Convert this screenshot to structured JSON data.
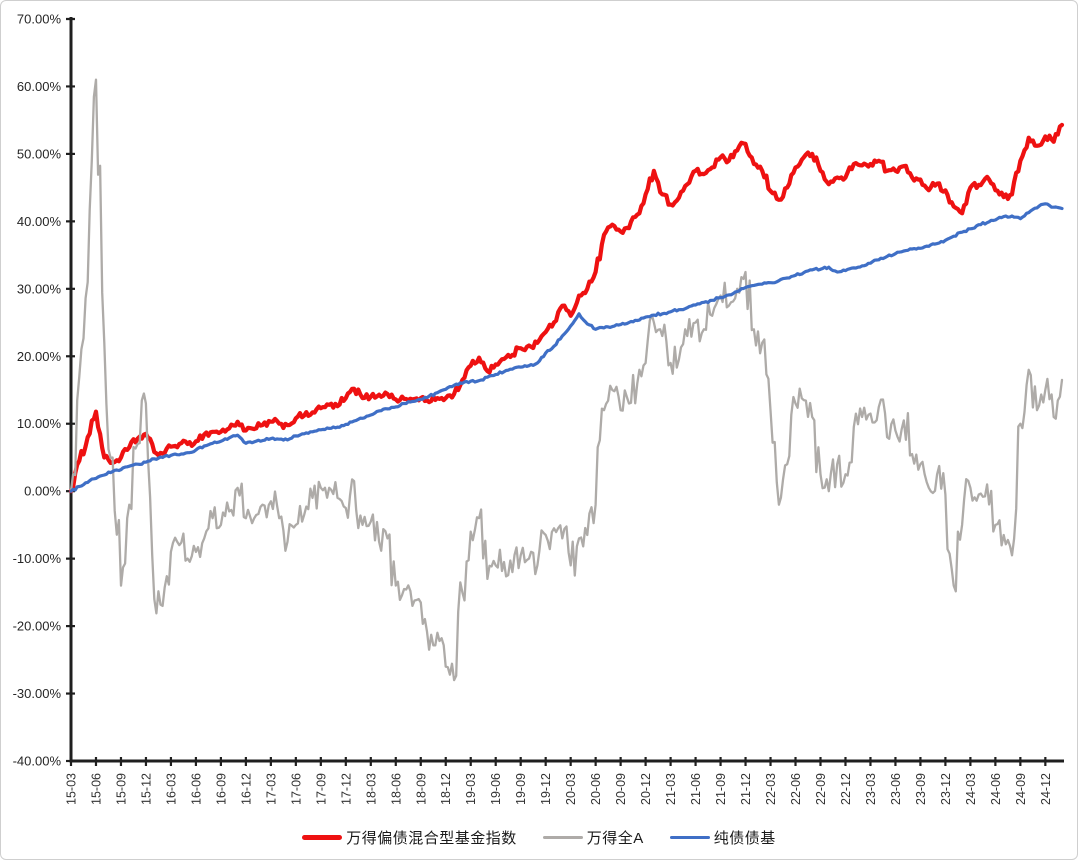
{
  "chart_data": {
    "type": "line",
    "title": "",
    "xlabel": "",
    "ylabel": "",
    "grid": false,
    "legend_position": "bottom",
    "ylim": [
      -40,
      70
    ],
    "ytick_step": 10,
    "y_tick_labels": [
      "70.00%",
      "60.00%",
      "50.00%",
      "40.00%",
      "30.00%",
      "20.00%",
      "10.00%",
      "0.00%",
      "-10.00%",
      "-20.00%",
      "-30.00%",
      "-40.00%"
    ],
    "x_tick_labels": [
      "15-03",
      "15-06",
      "15-09",
      "15-12",
      "16-03",
      "16-06",
      "16-09",
      "16-12",
      "17-03",
      "17-06",
      "17-09",
      "17-12",
      "18-03",
      "18-06",
      "18-09",
      "18-12",
      "19-03",
      "19-06",
      "19-09",
      "19-12",
      "20-03",
      "20-06",
      "20-09",
      "20-12",
      "21-03",
      "21-06",
      "21-09",
      "21-12",
      "22-03",
      "22-06",
      "22-09",
      "22-12",
      "23-03",
      "23-06",
      "23-09",
      "23-12",
      "24-03",
      "24-06",
      "24-09",
      "24-12"
    ],
    "x_months_per_tick": 3,
    "x_total_months": 120,
    "series": [
      {
        "name": "万得偏债混合型基金指数",
        "color": "#ee1111",
        "width": 4.2,
        "jitter": 0.55,
        "values": [
          0.0,
          4.5,
          8.0,
          11.8,
          5.0,
          4.2,
          5.0,
          6.5,
          7.8,
          8.5,
          5.8,
          5.6,
          6.6,
          7.0,
          7.0,
          7.4,
          8.4,
          8.8,
          8.8,
          9.3,
          10.3,
          9.0,
          9.2,
          9.8,
          10.3,
          10.0,
          9.8,
          10.8,
          11.2,
          11.7,
          12.3,
          12.8,
          12.6,
          13.8,
          15.2,
          13.8,
          14.0,
          14.3,
          14.4,
          13.6,
          13.7,
          13.6,
          13.8,
          13.2,
          13.8,
          13.8,
          14.4,
          16.5,
          18.6,
          19.8,
          17.8,
          18.8,
          19.6,
          20.2,
          21.2,
          21.6,
          22.0,
          23.6,
          25.0,
          27.5,
          26.0,
          29.0,
          30.0,
          32.5,
          38.0,
          39.5,
          38.5,
          39.0,
          41.0,
          44.0,
          47.5,
          44.0,
          42.5,
          43.5,
          45.5,
          47.5,
          47.0,
          48.0,
          49.5,
          49.0,
          50.5,
          51.5,
          48.5,
          47.5,
          44.5,
          43.2,
          45.0,
          48.0,
          49.5,
          50.0,
          47.5,
          45.5,
          46.5,
          46.5,
          48.5,
          48.3,
          48.5,
          49.0,
          47.5,
          47.5,
          48.2,
          46.5,
          46.2,
          44.6,
          45.6,
          44.6,
          42.2,
          41.2,
          45.0,
          45.4,
          46.6,
          44.6,
          43.6,
          44.0,
          49.0,
          52.4,
          51.2,
          52.6,
          51.8,
          54.3
        ]
      },
      {
        "name": "万得全A",
        "color": "#aeaba8",
        "width": 2.3,
        "jitter": 2.3,
        "values": [
          0,
          17,
          31,
          61,
          22,
          5,
          -14,
          -2,
          7,
          13,
          -16,
          -17,
          -9,
          -8,
          -10,
          -9,
          -7,
          -4,
          -5,
          -3,
          0.5,
          -4,
          -4,
          -2,
          -1.5,
          -4,
          -7.5,
          -5,
          -3.5,
          -1,
          0.5,
          0.5,
          -1,
          -2.5,
          1.5,
          -5,
          -4.5,
          -7.5,
          -7,
          -14,
          -14.5,
          -17,
          -16.5,
          -23.5,
          -21,
          -26,
          -28,
          -15,
          -6,
          -4,
          -13,
          -11,
          -10.5,
          -12,
          -9.5,
          -10,
          -11,
          -6.5,
          -5.5,
          -7,
          -11,
          -7,
          -6.5,
          -2,
          12,
          15,
          12,
          13,
          16,
          19,
          25,
          23,
          19,
          19.5,
          23,
          25,
          24,
          26,
          29,
          27.5,
          30,
          32.5,
          24,
          22,
          12,
          -2,
          4,
          13,
          13.5,
          11,
          2.5,
          0,
          4,
          2.5,
          9.5,
          11,
          11.5,
          12.5,
          8,
          9,
          10.5,
          5.5,
          4,
          0.5,
          2.5,
          -0.5,
          -14,
          -5,
          0.5,
          -0.5,
          1,
          -5,
          -6.5,
          -9.5,
          10,
          18,
          12,
          15,
          11,
          16.5
        ]
      },
      {
        "name": "纯债债基",
        "color": "#3f6fc6",
        "width": 3.2,
        "jitter": 0.18,
        "values": [
          0.0,
          0.7,
          1.3,
          1.9,
          2.4,
          2.9,
          3.2,
          3.7,
          4.0,
          4.3,
          4.8,
          5.0,
          5.3,
          5.4,
          5.7,
          6.1,
          6.7,
          7.1,
          7.4,
          7.9,
          8.3,
          7.1,
          7.3,
          7.5,
          7.8,
          7.7,
          7.6,
          8.2,
          8.5,
          8.8,
          9.1,
          9.3,
          9.5,
          9.9,
          10.4,
          10.8,
          11.3,
          11.9,
          12.2,
          12.5,
          13.0,
          13.3,
          13.6,
          14.1,
          14.6,
          15.1,
          15.7,
          16.0,
          16.3,
          16.4,
          16.9,
          17.3,
          17.7,
          18.1,
          18.4,
          18.6,
          19.0,
          20.5,
          21.5,
          23.0,
          24.5,
          26.3,
          24.8,
          24.0,
          24.2,
          24.4,
          24.7,
          25.0,
          25.3,
          25.8,
          26.1,
          26.3,
          26.6,
          26.9,
          27.2,
          27.6,
          28.0,
          28.3,
          28.7,
          29.1,
          29.6,
          30.2,
          30.5,
          30.7,
          30.9,
          31.2,
          31.6,
          32.0,
          32.4,
          32.8,
          32.9,
          33.2,
          32.5,
          32.7,
          33.1,
          33.4,
          33.8,
          34.3,
          34.8,
          35.2,
          35.6,
          35.9,
          36.0,
          36.3,
          36.7,
          37.2,
          37.8,
          38.4,
          38.9,
          39.5,
          39.8,
          40.2,
          40.7,
          40.8,
          40.4,
          41.3,
          42.0,
          42.6,
          42.1,
          41.9
        ]
      }
    ]
  },
  "legend": {
    "item1": "万得偏债混合型基金指数",
    "item2": "万得全A",
    "item3": "纯债债基"
  }
}
